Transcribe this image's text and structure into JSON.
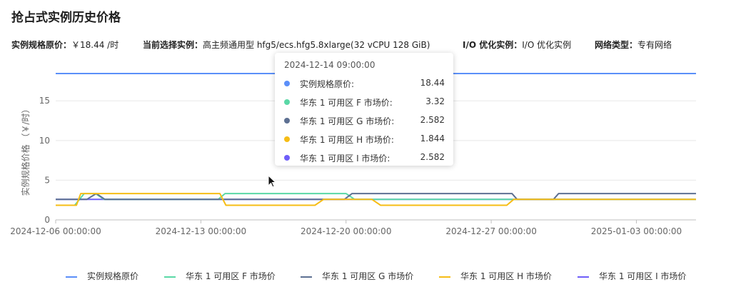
{
  "title": "抢占式实例历史价格",
  "info": [
    {
      "key": "实例规格原价：",
      "value": "￥18.44 /时"
    },
    {
      "key": "当前选择实例：",
      "value": "高主频通用型 hfg5/ecs.hfg5.8xlarge(32 vCPU 128 GiB)"
    },
    {
      "key": "I/O 优化实例：",
      "value": "I/O 优化实例"
    },
    {
      "key": "网络类型：",
      "value": "专有网络"
    }
  ],
  "tooltip": {
    "time": "2024-12-14 09:00:00",
    "rows": [
      {
        "name": "实例规格原价:",
        "value": "18.44"
      },
      {
        "name": "华东 1 可用区 F 市场价:",
        "value": "3.32"
      },
      {
        "name": "华东 1 可用区 G 市场价:",
        "value": "2.582"
      },
      {
        "name": "华东 1 可用区 H 市场价:",
        "value": "1.844"
      },
      {
        "name": "华东 1 可用区 I 市场价:",
        "value": "2.582"
      }
    ]
  },
  "colors": {
    "original": "#5B8FF9",
    "F": "#5AD8A6",
    "G": "#5D7092",
    "H": "#F6BD16",
    "I": "#6F5EF9",
    "grid": "#e8e8e8",
    "axis_text": "#666666"
  },
  "chart_data": {
    "type": "line",
    "title": "抢占式实例历史价格",
    "ylabel": "实例规格价格 （￥/时）",
    "xlabel": "",
    "ylim": [
      0,
      18.44
    ],
    "yticks": [
      0,
      5,
      10,
      15
    ],
    "xlim": [
      "2024-12-06 00:00:00",
      "2025-01-05 21:00:00"
    ],
    "xticks": [
      "2024-12-06 00:00:00",
      "2024-12-13 00:00:00",
      "2024-12-20 00:00:00",
      "2024-12-27 00:00:00",
      "2025-01-03 00:00:00"
    ],
    "grid": true,
    "legend": "bottom",
    "series": [
      {
        "name": "实例规格原价",
        "color_key": "original",
        "points": [
          [
            "2024-12-06 00:00:00",
            18.44
          ],
          [
            "2025-01-05 21:00:00",
            18.44
          ]
        ]
      },
      {
        "name": "华东 1 可用区 F 市场价",
        "color_key": "F",
        "points": [
          [
            "2024-12-06 00:00:00",
            1.844
          ],
          [
            "2024-12-06 22:00:00",
            1.844
          ],
          [
            "2024-12-07 09:00:00",
            3.32
          ],
          [
            "2024-12-07 22:00:00",
            3.32
          ],
          [
            "2024-12-08 08:00:00",
            2.582
          ],
          [
            "2024-12-13 20:00:00",
            2.582
          ],
          [
            "2024-12-14 04:00:00",
            3.32
          ],
          [
            "2024-12-20 00:00:00",
            3.32
          ],
          [
            "2024-12-20 10:00:00",
            2.582
          ],
          [
            "2025-01-05 21:00:00",
            2.582
          ]
        ]
      },
      {
        "name": "华东 1 可用区 G 市场价",
        "color_key": "G",
        "points": [
          [
            "2024-12-06 00:00:00",
            2.582
          ],
          [
            "2024-12-07 12:00:00",
            2.582
          ],
          [
            "2024-12-07 23:00:00",
            3.32
          ],
          [
            "2024-12-08 09:00:00",
            2.582
          ],
          [
            "2024-12-19 22:00:00",
            2.582
          ],
          [
            "2024-12-20 07:00:00",
            3.32
          ],
          [
            "2024-12-28 00:00:00",
            3.32
          ],
          [
            "2024-12-28 06:00:00",
            2.582
          ],
          [
            "2024-12-30 00:00:00",
            2.582
          ],
          [
            "2024-12-30 06:00:00",
            3.32
          ],
          [
            "2025-01-05 21:00:00",
            3.32
          ]
        ]
      },
      {
        "name": "华东 1 可用区 H 市场价",
        "color_key": "H",
        "points": [
          [
            "2024-12-06 00:00:00",
            1.844
          ],
          [
            "2024-12-07 00:00:00",
            1.844
          ],
          [
            "2024-12-07 05:00:00",
            3.32
          ],
          [
            "2024-12-13 22:00:00",
            3.32
          ],
          [
            "2024-12-14 05:00:00",
            1.844
          ],
          [
            "2024-12-18 12:00:00",
            1.844
          ],
          [
            "2024-12-18 22:00:00",
            2.582
          ],
          [
            "2024-12-21 06:00:00",
            2.582
          ],
          [
            "2024-12-21 16:00:00",
            1.844
          ],
          [
            "2024-12-27 18:00:00",
            1.844
          ],
          [
            "2024-12-28 02:00:00",
            2.582
          ],
          [
            "2025-01-05 21:00:00",
            2.582
          ]
        ]
      },
      {
        "name": "华东 1 可用区 I 市场价",
        "color_key": "I",
        "points": [
          [
            "2024-12-06 00:00:00",
            2.582
          ],
          [
            "2025-01-05 21:00:00",
            2.582
          ]
        ]
      }
    ]
  },
  "legend_items": [
    "实例规格原价",
    "华东 1 可用区 F 市场价",
    "华东 1 可用区 G 市场价",
    "华东 1 可用区 H 市场价",
    "华东 1 可用区 I 市场价"
  ]
}
